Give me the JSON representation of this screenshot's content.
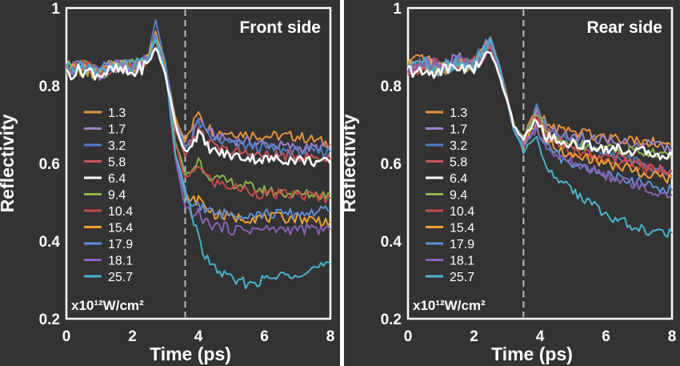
{
  "chart_data": [
    {
      "type": "line",
      "title": "Front side",
      "xlabel": "Time (ps)",
      "ylabel": "Reflectivity",
      "xlim": [
        0,
        8
      ],
      "ylim": [
        0.2,
        1.0
      ],
      "xticks": [
        "0",
        "2",
        "4",
        "6",
        "8"
      ],
      "yticks": [
        "0.2",
        "0.4",
        "0.6",
        "0.8",
        "1"
      ],
      "marker_x": 3.6,
      "grid": false,
      "legend_position": "left",
      "legend_unit": "x10¹²W/cm²",
      "series": [
        {
          "name": "1.3",
          "color": "#e8923a",
          "x": [
            0,
            0.5,
            1,
            1.5,
            2,
            2.5,
            2.7,
            3,
            3.3,
            3.6,
            3.8,
            4,
            4.2,
            4.5,
            5,
            6,
            7,
            8
          ],
          "y": [
            0.84,
            0.85,
            0.83,
            0.86,
            0.84,
            0.87,
            0.93,
            0.85,
            0.72,
            0.66,
            0.69,
            0.74,
            0.7,
            0.68,
            0.68,
            0.67,
            0.67,
            0.65
          ]
        },
        {
          "name": "1.7",
          "color": "#9b82c9",
          "x": [
            0,
            0.5,
            1,
            1.5,
            2,
            2.5,
            2.7,
            3,
            3.3,
            3.6,
            3.8,
            4,
            4.2,
            4.5,
            5,
            6,
            7,
            8
          ],
          "y": [
            0.84,
            0.86,
            0.82,
            0.85,
            0.85,
            0.88,
            0.92,
            0.84,
            0.71,
            0.64,
            0.67,
            0.72,
            0.69,
            0.67,
            0.66,
            0.65,
            0.64,
            0.64
          ]
        },
        {
          "name": "3.2",
          "color": "#4f7fc9",
          "x": [
            0,
            0.5,
            1,
            1.5,
            2,
            2.5,
            2.7,
            3,
            3.3,
            3.6,
            3.8,
            4,
            4.2,
            4.5,
            5,
            6,
            7,
            8
          ],
          "y": [
            0.85,
            0.84,
            0.83,
            0.86,
            0.84,
            0.88,
            0.97,
            0.86,
            0.7,
            0.64,
            0.66,
            0.71,
            0.68,
            0.66,
            0.65,
            0.64,
            0.63,
            0.63
          ]
        },
        {
          "name": "5.8",
          "color": "#c9545a",
          "x": [
            0,
            0.5,
            1,
            1.5,
            2,
            2.5,
            2.7,
            3,
            3.3,
            3.6,
            3.8,
            4,
            4.2,
            4.5,
            5,
            6,
            7,
            8
          ],
          "y": [
            0.83,
            0.85,
            0.84,
            0.85,
            0.85,
            0.87,
            0.92,
            0.84,
            0.69,
            0.62,
            0.65,
            0.69,
            0.66,
            0.64,
            0.63,
            0.62,
            0.62,
            0.61
          ]
        },
        {
          "name": "6.4",
          "color": "#ffffff",
          "x": [
            0,
            0.5,
            1,
            1.5,
            2,
            2.5,
            2.7,
            3,
            3.3,
            3.6,
            3.8,
            4,
            4.2,
            4.5,
            5,
            6,
            7,
            8
          ],
          "y": [
            0.83,
            0.84,
            0.83,
            0.84,
            0.83,
            0.86,
            0.9,
            0.83,
            0.7,
            0.63,
            0.65,
            0.68,
            0.65,
            0.63,
            0.62,
            0.61,
            0.61,
            0.6
          ]
        },
        {
          "name": "9.4",
          "color": "#8db24a",
          "x": [
            0,
            0.5,
            1,
            1.5,
            2,
            2.5,
            2.7,
            3,
            3.3,
            3.6,
            3.8,
            4,
            4.2,
            4.5,
            5,
            6,
            7,
            8
          ],
          "y": [
            0.84,
            0.85,
            0.83,
            0.85,
            0.85,
            0.87,
            0.92,
            0.84,
            0.66,
            0.57,
            0.58,
            0.61,
            0.58,
            0.56,
            0.55,
            0.53,
            0.52,
            0.52
          ]
        },
        {
          "name": "10.4",
          "color": "#c84a48",
          "x": [
            0,
            0.5,
            1,
            1.5,
            2,
            2.5,
            2.7,
            3,
            3.3,
            3.6,
            3.8,
            4,
            4.2,
            4.5,
            5,
            6,
            7,
            8
          ],
          "y": [
            0.84,
            0.86,
            0.83,
            0.85,
            0.84,
            0.87,
            0.93,
            0.84,
            0.65,
            0.56,
            0.57,
            0.6,
            0.57,
            0.55,
            0.54,
            0.52,
            0.52,
            0.51
          ]
        },
        {
          "name": "15.4",
          "color": "#f0a030",
          "x": [
            0,
            0.5,
            1,
            1.5,
            2,
            2.5,
            2.7,
            3,
            3.3,
            3.6,
            3.8,
            4,
            4.2,
            4.5,
            5,
            6,
            7,
            8
          ],
          "y": [
            0.85,
            0.84,
            0.83,
            0.86,
            0.85,
            0.88,
            0.94,
            0.85,
            0.63,
            0.52,
            0.5,
            0.51,
            0.49,
            0.47,
            0.46,
            0.46,
            0.46,
            0.45
          ]
        },
        {
          "name": "17.9",
          "color": "#5e8fd4",
          "x": [
            0,
            0.5,
            1,
            1.5,
            2,
            2.5,
            2.7,
            3,
            3.3,
            3.6,
            3.8,
            4,
            4.2,
            4.5,
            5,
            6,
            7,
            8
          ],
          "y": [
            0.84,
            0.85,
            0.84,
            0.85,
            0.85,
            0.87,
            0.93,
            0.84,
            0.62,
            0.51,
            0.49,
            0.5,
            0.48,
            0.47,
            0.47,
            0.47,
            0.47,
            0.48
          ]
        },
        {
          "name": "18.1",
          "color": "#8a60b8",
          "x": [
            0,
            0.5,
            1,
            1.5,
            2,
            2.5,
            2.7,
            3,
            3.3,
            3.6,
            3.8,
            4,
            4.2,
            4.5,
            5,
            6,
            7,
            8
          ],
          "y": [
            0.84,
            0.85,
            0.83,
            0.86,
            0.84,
            0.87,
            0.92,
            0.84,
            0.61,
            0.49,
            0.47,
            0.47,
            0.45,
            0.44,
            0.43,
            0.43,
            0.43,
            0.43
          ]
        },
        {
          "name": "25.7",
          "color": "#45b4cf",
          "x": [
            0,
            0.5,
            1,
            1.5,
            2,
            2.5,
            2.7,
            3,
            3.3,
            3.6,
            3.8,
            4,
            4.2,
            4.5,
            5,
            5.5,
            6,
            6.5,
            7,
            7.5,
            8
          ],
          "y": [
            0.84,
            0.85,
            0.83,
            0.85,
            0.85,
            0.87,
            0.92,
            0.84,
            0.63,
            0.53,
            0.47,
            0.41,
            0.36,
            0.33,
            0.3,
            0.29,
            0.3,
            0.31,
            0.32,
            0.33,
            0.34
          ]
        }
      ]
    },
    {
      "type": "line",
      "title": "Rear side",
      "xlabel": "Time (ps)",
      "ylabel": "Reflectivity",
      "xlim": [
        0,
        8
      ],
      "ylim": [
        0.2,
        1.0
      ],
      "xticks": [
        "0",
        "2",
        "4",
        "6",
        "8"
      ],
      "yticks": [
        "0.2",
        "0.4",
        "0.6",
        "0.8",
        "1"
      ],
      "marker_x": 3.5,
      "grid": false,
      "legend_position": "left",
      "legend_unit": "x10¹²W/cm²",
      "series": [
        {
          "name": "1.3",
          "color": "#e8923a",
          "x": [
            0,
            0.5,
            1,
            1.5,
            2,
            2.5,
            2.8,
            3.2,
            3.5,
            3.7,
            3.9,
            4.2,
            4.5,
            5,
            6,
            7,
            8
          ],
          "y": [
            0.85,
            0.87,
            0.84,
            0.86,
            0.85,
            0.91,
            0.84,
            0.7,
            0.66,
            0.71,
            0.74,
            0.7,
            0.69,
            0.68,
            0.67,
            0.66,
            0.65
          ]
        },
        {
          "name": "1.7",
          "color": "#9b82c9",
          "x": [
            0,
            0.5,
            1,
            1.5,
            2,
            2.5,
            2.8,
            3.2,
            3.5,
            3.7,
            3.9,
            4.2,
            4.5,
            5,
            6,
            7,
            8
          ],
          "y": [
            0.84,
            0.86,
            0.85,
            0.87,
            0.85,
            0.9,
            0.83,
            0.69,
            0.65,
            0.7,
            0.73,
            0.69,
            0.68,
            0.67,
            0.66,
            0.65,
            0.64
          ]
        },
        {
          "name": "3.2",
          "color": "#4f7fc9",
          "x": [
            0,
            0.5,
            1,
            1.5,
            2,
            2.5,
            2.8,
            3.2,
            3.5,
            3.7,
            3.9,
            4.2,
            4.5,
            5,
            6,
            7,
            8
          ],
          "y": [
            0.85,
            0.86,
            0.84,
            0.86,
            0.86,
            0.92,
            0.84,
            0.7,
            0.66,
            0.7,
            0.74,
            0.69,
            0.67,
            0.66,
            0.63,
            0.6,
            0.58
          ]
        },
        {
          "name": "5.8",
          "color": "#c9545a",
          "x": [
            0,
            0.5,
            1,
            1.5,
            2,
            2.5,
            2.8,
            3.2,
            3.5,
            3.7,
            3.9,
            4.2,
            4.5,
            5,
            6,
            7,
            8
          ],
          "y": [
            0.84,
            0.85,
            0.84,
            0.86,
            0.85,
            0.9,
            0.83,
            0.69,
            0.65,
            0.69,
            0.72,
            0.68,
            0.66,
            0.64,
            0.62,
            0.6,
            0.58
          ]
        },
        {
          "name": "6.4",
          "color": "#ffffff",
          "x": [
            0,
            0.5,
            1,
            1.5,
            2,
            2.5,
            2.8,
            3.2,
            3.5,
            3.7,
            3.9,
            4.2,
            4.5,
            5,
            6,
            7,
            8
          ],
          "y": [
            0.84,
            0.83,
            0.84,
            0.85,
            0.84,
            0.89,
            0.82,
            0.7,
            0.66,
            0.69,
            0.71,
            0.67,
            0.66,
            0.65,
            0.64,
            0.63,
            0.62
          ]
        },
        {
          "name": "9.4",
          "color": "#8db24a",
          "x": [
            0,
            0.5,
            1,
            1.5,
            2,
            2.5,
            2.8,
            3.2,
            3.5,
            3.7,
            3.9,
            4.2,
            4.5,
            5,
            6,
            7,
            8
          ],
          "y": [
            0.85,
            0.86,
            0.84,
            0.86,
            0.85,
            0.91,
            0.83,
            0.7,
            0.66,
            0.7,
            0.73,
            0.68,
            0.66,
            0.65,
            0.64,
            0.63,
            0.62
          ]
        },
        {
          "name": "10.4",
          "color": "#c84a48",
          "x": [
            0,
            0.5,
            1,
            1.5,
            2,
            2.5,
            2.8,
            3.2,
            3.5,
            3.7,
            3.9,
            4.2,
            4.5,
            5,
            6,
            7,
            8
          ],
          "y": [
            0.84,
            0.86,
            0.85,
            0.85,
            0.86,
            0.91,
            0.84,
            0.69,
            0.65,
            0.69,
            0.72,
            0.67,
            0.65,
            0.63,
            0.61,
            0.59,
            0.57
          ]
        },
        {
          "name": "15.4",
          "color": "#f0a030",
          "x": [
            0,
            0.5,
            1,
            1.5,
            2,
            2.5,
            2.8,
            3.2,
            3.5,
            3.7,
            3.9,
            4.2,
            4.5,
            5,
            6,
            7,
            8
          ],
          "y": [
            0.85,
            0.86,
            0.84,
            0.86,
            0.85,
            0.92,
            0.84,
            0.69,
            0.64,
            0.68,
            0.71,
            0.66,
            0.64,
            0.62,
            0.6,
            0.58,
            0.56
          ]
        },
        {
          "name": "17.9",
          "color": "#5e8fd4",
          "x": [
            0,
            0.5,
            1,
            1.5,
            2,
            2.5,
            2.8,
            3.2,
            3.5,
            3.7,
            3.9,
            4.2,
            4.5,
            5,
            6,
            7,
            8
          ],
          "y": [
            0.85,
            0.86,
            0.84,
            0.86,
            0.85,
            0.92,
            0.84,
            0.69,
            0.64,
            0.67,
            0.69,
            0.64,
            0.62,
            0.6,
            0.57,
            0.55,
            0.53
          ]
        },
        {
          "name": "18.1",
          "color": "#8a60b8",
          "x": [
            0,
            0.5,
            1,
            1.5,
            2,
            2.5,
            2.8,
            3.2,
            3.5,
            3.7,
            3.9,
            4.2,
            4.5,
            5,
            6,
            7,
            8
          ],
          "y": [
            0.84,
            0.86,
            0.85,
            0.86,
            0.85,
            0.91,
            0.83,
            0.69,
            0.64,
            0.67,
            0.69,
            0.64,
            0.62,
            0.6,
            0.57,
            0.54,
            0.52
          ]
        },
        {
          "name": "25.7",
          "color": "#45b4cf",
          "x": [
            0,
            0.5,
            1,
            1.5,
            2,
            2.5,
            2.8,
            3.2,
            3.5,
            3.7,
            3.9,
            4.2,
            4.5,
            5,
            5.5,
            6,
            6.5,
            7,
            7.5,
            8
          ],
          "y": [
            0.85,
            0.86,
            0.84,
            0.86,
            0.85,
            0.92,
            0.84,
            0.69,
            0.63,
            0.65,
            0.66,
            0.6,
            0.56,
            0.53,
            0.5,
            0.47,
            0.45,
            0.43,
            0.42,
            0.42
          ]
        }
      ]
    }
  ]
}
